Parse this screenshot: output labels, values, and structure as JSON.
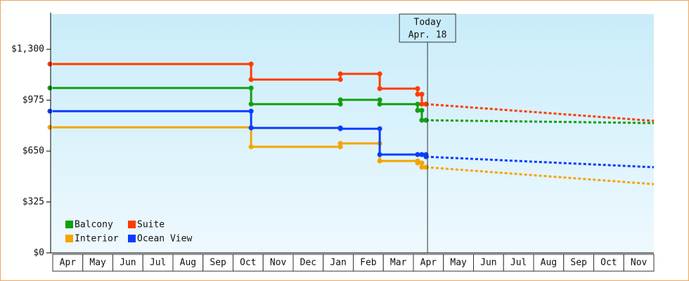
{
  "chart_data": {
    "type": "step",
    "categories": [
      "Apr",
      "May",
      "Jun",
      "Jul",
      "Aug",
      "Sep",
      "Oct",
      "Nov",
      "Dec",
      "Jan",
      "Feb",
      "Mar",
      "Apr",
      "May",
      "Jun",
      "Jul",
      "Aug",
      "Sep",
      "Oct",
      "Nov"
    ],
    "x": [
      0,
      6.6,
      9.57,
      10.88,
      12.14,
      12.28,
      12.42,
      20
    ],
    "xlim": [
      0,
      20
    ],
    "series": [
      {
        "name": "Balcony",
        "color": "#10a010",
        "values": [
          1053,
          950,
          977,
          950,
          910,
          847,
          847,
          829
        ]
      },
      {
        "name": "Suite",
        "color": "#ff3c00",
        "values": [
          1206,
          1107,
          1143,
          1049,
          1013,
          950,
          950,
          843
        ]
      },
      {
        "name": "Interior",
        "color": "#f5a400",
        "values": [
          802,
          677,
          699,
          587,
          574,
          547,
          547,
          439
        ]
      },
      {
        "name": "Ocean View",
        "color": "#0a3cff",
        "values": [
          905,
          798,
          793,
          628,
          628,
          628,
          614,
          547
        ]
      }
    ],
    "ylim": [
      0,
      1525
    ],
    "yticks": [
      {
        "value": 0,
        "label": "$0"
      },
      {
        "value": 325,
        "label": "$325"
      },
      {
        "value": 650,
        "label": "$650"
      },
      {
        "value": 975,
        "label": "$975"
      },
      {
        "value": 1300,
        "label": "$1,300"
      }
    ],
    "today": {
      "x": 12.47,
      "label": "Today",
      "date": "Apr. 18"
    }
  }
}
